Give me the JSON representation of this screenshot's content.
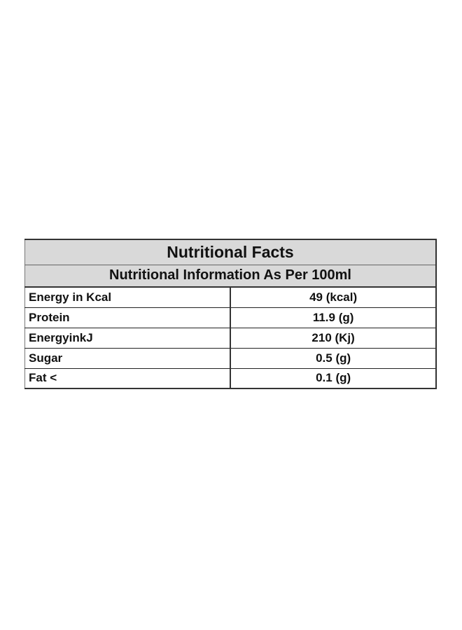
{
  "table": {
    "title": "Nutritional Facts",
    "subtitle": "Nutritional Information As Per 100ml",
    "rows": [
      {
        "label": "Energy in Kcal",
        "value": "49 (kcal)"
      },
      {
        "label": "Protein",
        "value": "11.9 (g)"
      },
      {
        "label": "EnergyinkJ",
        "value": "210 (Kj)"
      },
      {
        "label": "Sugar",
        "value": "0.5 (g)"
      },
      {
        "label": "Fat <",
        "value": "0.1 (g)"
      }
    ]
  },
  "colors": {
    "header_background": "#d9d9d9",
    "border": "#333333",
    "text": "#111111"
  }
}
